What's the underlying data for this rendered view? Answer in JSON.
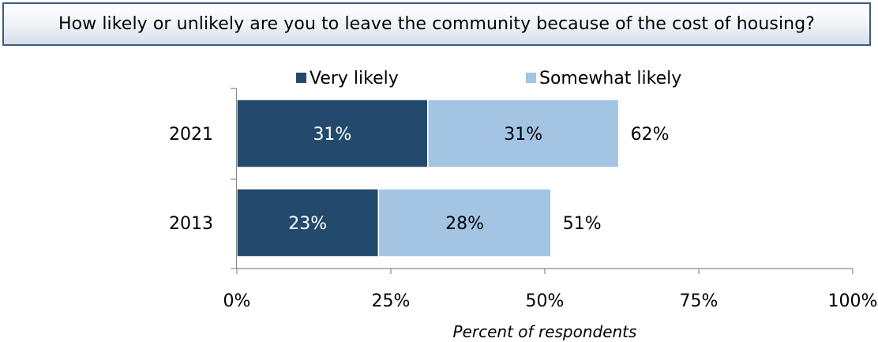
{
  "title": "How likely or unlikely are you to leave the community because of the cost of housing?",
  "colors": {
    "very_likely": "#234a6d",
    "somewhat_likely": "#a3c4e3",
    "axis": "#8a8a8a",
    "title_border": "#3c5a80"
  },
  "chart_data": {
    "type": "bar",
    "orientation": "horizontal",
    "stacked": true,
    "categories": [
      "2021",
      "2013"
    ],
    "series": [
      {
        "name": "Very likely",
        "values": [
          31,
          23
        ],
        "labels": [
          "31%",
          "23%"
        ]
      },
      {
        "name": "Somewhat likely",
        "values": [
          31,
          28
        ],
        "labels": [
          "31%",
          "28%"
        ]
      }
    ],
    "totals": [
      62,
      51
    ],
    "total_labels": [
      "62%",
      "51%"
    ],
    "xlim": [
      0,
      100
    ],
    "xticks": [
      0,
      25,
      50,
      75,
      100
    ],
    "xtick_labels": [
      "0%",
      "25%",
      "50%",
      "75%",
      "100%"
    ],
    "xlabel": "Percent of respondents",
    "ylabel": "",
    "legend_position": "top",
    "grid": false
  }
}
